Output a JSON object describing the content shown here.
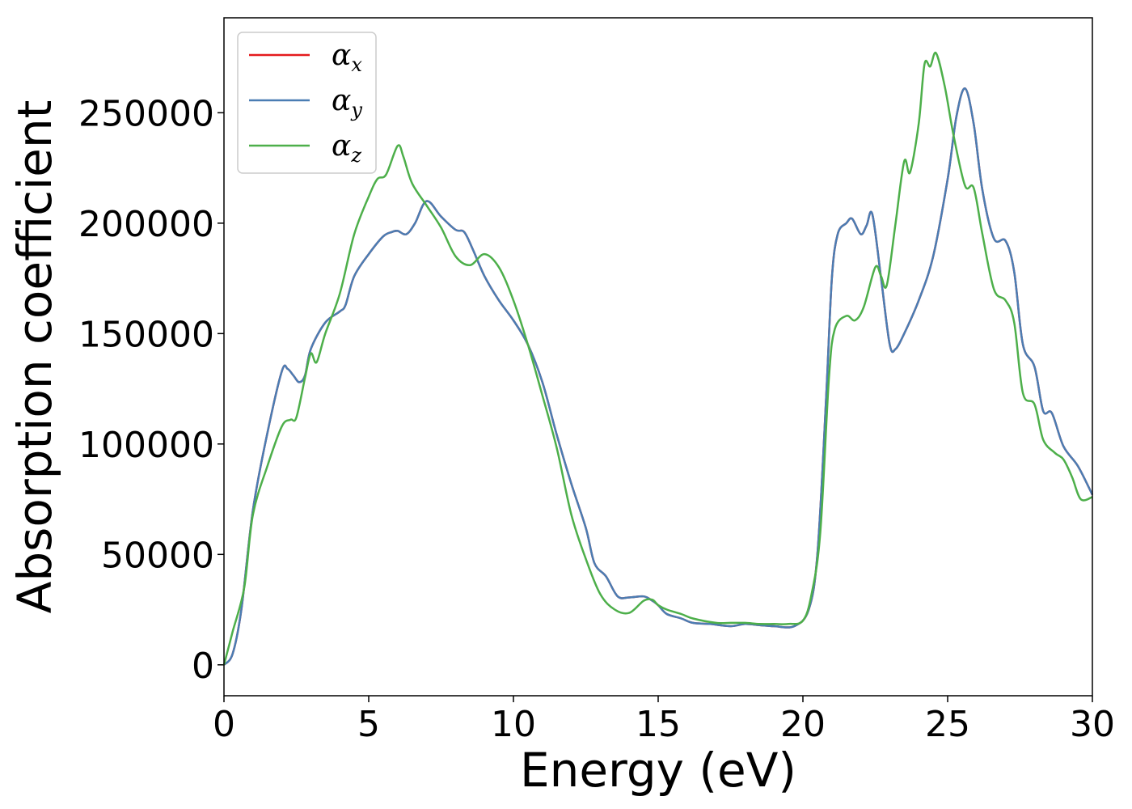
{
  "chart_data": {
    "type": "line",
    "title": "",
    "xlabel": "Energy (eV)",
    "ylabel": "Absorption coefficient",
    "xlim": [
      0,
      30
    ],
    "ylim": [
      -14000,
      293000
    ],
    "xticks": [
      "0",
      "5",
      "10",
      "15",
      "20",
      "25",
      "30"
    ],
    "yticks": [
      "0",
      "50000",
      "100000",
      "150000",
      "200000",
      "250000"
    ],
    "grid": false,
    "legend_placement": "upper-left",
    "series": [
      {
        "name": "α_x",
        "symbol": "α",
        "subscript": "x",
        "color": "#e41a1c",
        "points": [
          [
            0,
            0
          ],
          [
            0.3,
            5000
          ],
          [
            0.6,
            25000
          ],
          [
            1.0,
            70000
          ],
          [
            1.5,
            105000
          ],
          [
            2.0,
            133000
          ],
          [
            2.2,
            134000
          ],
          [
            2.4,
            131000
          ],
          [
            2.6,
            128000
          ],
          [
            2.8,
            131000
          ],
          [
            3.0,
            143000
          ],
          [
            3.5,
            155000
          ],
          [
            4.0,
            160000
          ],
          [
            4.2,
            163000
          ],
          [
            4.5,
            176000
          ],
          [
            5.0,
            186000
          ],
          [
            5.5,
            194000
          ],
          [
            5.8,
            196000
          ],
          [
            6.0,
            196500
          ],
          [
            6.3,
            195000
          ],
          [
            6.6,
            200000
          ],
          [
            7.0,
            210000
          ],
          [
            7.5,
            203000
          ],
          [
            8.0,
            197000
          ],
          [
            8.3,
            196000
          ],
          [
            8.6,
            188000
          ],
          [
            9.0,
            176000
          ],
          [
            9.5,
            165000
          ],
          [
            10.0,
            156000
          ],
          [
            10.5,
            145000
          ],
          [
            11.0,
            128000
          ],
          [
            11.5,
            104000
          ],
          [
            12.0,
            82000
          ],
          [
            12.5,
            62000
          ],
          [
            12.8,
            46000
          ],
          [
            13.2,
            40000
          ],
          [
            13.6,
            31000
          ],
          [
            14.0,
            30500
          ],
          [
            14.5,
            31000
          ],
          [
            14.8,
            29000
          ],
          [
            15.0,
            27000
          ],
          [
            15.3,
            23000
          ],
          [
            15.8,
            21000
          ],
          [
            16.2,
            19000
          ],
          [
            16.8,
            18500
          ],
          [
            17.5,
            17500
          ],
          [
            18.0,
            18500
          ],
          [
            18.5,
            18000
          ],
          [
            19.0,
            17500
          ],
          [
            19.7,
            17500
          ],
          [
            20.2,
            25000
          ],
          [
            20.5,
            50000
          ],
          [
            20.8,
            120000
          ],
          [
            21.0,
            175000
          ],
          [
            21.2,
            195000
          ],
          [
            21.5,
            200000
          ],
          [
            21.7,
            202000
          ],
          [
            22.0,
            195000
          ],
          [
            22.2,
            199000
          ],
          [
            22.4,
            204000
          ],
          [
            22.7,
            175000
          ],
          [
            23.0,
            145000
          ],
          [
            23.2,
            143000
          ],
          [
            23.5,
            150000
          ],
          [
            24.0,
            165000
          ],
          [
            24.5,
            185000
          ],
          [
            25.0,
            220000
          ],
          [
            25.3,
            248000
          ],
          [
            25.6,
            261000
          ],
          [
            25.9,
            245000
          ],
          [
            26.2,
            215000
          ],
          [
            26.6,
            193000
          ],
          [
            27.0,
            192000
          ],
          [
            27.3,
            178000
          ],
          [
            27.6,
            145000
          ],
          [
            28.0,
            135000
          ],
          [
            28.3,
            115000
          ],
          [
            28.6,
            114000
          ],
          [
            29.0,
            99000
          ],
          [
            29.5,
            90000
          ],
          [
            30.0,
            77000
          ]
        ]
      },
      {
        "name": "α_y",
        "symbol": "α",
        "subscript": "y",
        "color": "#4a7db3",
        "points": [
          [
            0,
            0
          ],
          [
            0.3,
            5000
          ],
          [
            0.6,
            25000
          ],
          [
            1.0,
            70000
          ],
          [
            1.5,
            105000
          ],
          [
            2.0,
            133000
          ],
          [
            2.2,
            134000
          ],
          [
            2.4,
            131000
          ],
          [
            2.6,
            128000
          ],
          [
            2.8,
            131000
          ],
          [
            3.0,
            143000
          ],
          [
            3.5,
            155000
          ],
          [
            4.0,
            160000
          ],
          [
            4.2,
            163000
          ],
          [
            4.5,
            176000
          ],
          [
            5.0,
            186000
          ],
          [
            5.5,
            194000
          ],
          [
            5.8,
            196000
          ],
          [
            6.0,
            196500
          ],
          [
            6.3,
            195000
          ],
          [
            6.6,
            200000
          ],
          [
            7.0,
            210000
          ],
          [
            7.5,
            203000
          ],
          [
            8.0,
            197000
          ],
          [
            8.3,
            196000
          ],
          [
            8.6,
            188000
          ],
          [
            9.0,
            176000
          ],
          [
            9.5,
            165000
          ],
          [
            10.0,
            156000
          ],
          [
            10.5,
            145000
          ],
          [
            11.0,
            128000
          ],
          [
            11.5,
            104000
          ],
          [
            12.0,
            82000
          ],
          [
            12.5,
            62000
          ],
          [
            12.8,
            46000
          ],
          [
            13.2,
            40000
          ],
          [
            13.6,
            31000
          ],
          [
            14.0,
            30500
          ],
          [
            14.5,
            31000
          ],
          [
            14.8,
            29000
          ],
          [
            15.0,
            27000
          ],
          [
            15.3,
            23000
          ],
          [
            15.8,
            21000
          ],
          [
            16.2,
            19000
          ],
          [
            16.8,
            18500
          ],
          [
            17.5,
            17500
          ],
          [
            18.0,
            18500
          ],
          [
            18.5,
            18000
          ],
          [
            19.0,
            17500
          ],
          [
            19.7,
            17500
          ],
          [
            20.2,
            25000
          ],
          [
            20.5,
            50000
          ],
          [
            20.8,
            120000
          ],
          [
            21.0,
            175000
          ],
          [
            21.2,
            195000
          ],
          [
            21.5,
            200000
          ],
          [
            21.7,
            202000
          ],
          [
            22.0,
            195000
          ],
          [
            22.2,
            199000
          ],
          [
            22.4,
            204000
          ],
          [
            22.7,
            175000
          ],
          [
            23.0,
            145000
          ],
          [
            23.2,
            143000
          ],
          [
            23.5,
            150000
          ],
          [
            24.0,
            165000
          ],
          [
            24.5,
            185000
          ],
          [
            25.0,
            220000
          ],
          [
            25.3,
            248000
          ],
          [
            25.6,
            261000
          ],
          [
            25.9,
            245000
          ],
          [
            26.2,
            215000
          ],
          [
            26.6,
            193000
          ],
          [
            27.0,
            192000
          ],
          [
            27.3,
            178000
          ],
          [
            27.6,
            145000
          ],
          [
            28.0,
            135000
          ],
          [
            28.3,
            115000
          ],
          [
            28.6,
            114000
          ],
          [
            29.0,
            99000
          ],
          [
            29.5,
            90000
          ],
          [
            30.0,
            77000
          ]
        ]
      },
      {
        "name": "α_z",
        "symbol": "α",
        "subscript": "z",
        "color": "#4daf4a",
        "points": [
          [
            0,
            0
          ],
          [
            0.3,
            15000
          ],
          [
            0.7,
            35000
          ],
          [
            1.0,
            68000
          ],
          [
            1.5,
            90000
          ],
          [
            2.0,
            108000
          ],
          [
            2.3,
            111000
          ],
          [
            2.5,
            112000
          ],
          [
            2.8,
            130000
          ],
          [
            3.0,
            141000
          ],
          [
            3.2,
            137000
          ],
          [
            3.5,
            150000
          ],
          [
            4.0,
            168000
          ],
          [
            4.5,
            195000
          ],
          [
            5.0,
            212000
          ],
          [
            5.3,
            220000
          ],
          [
            5.6,
            222000
          ],
          [
            6.0,
            235000
          ],
          [
            6.2,
            230000
          ],
          [
            6.5,
            218000
          ],
          [
            7.0,
            208000
          ],
          [
            7.5,
            198000
          ],
          [
            8.0,
            185000
          ],
          [
            8.5,
            181000
          ],
          [
            9.0,
            186000
          ],
          [
            9.5,
            180000
          ],
          [
            10.0,
            165000
          ],
          [
            10.5,
            145000
          ],
          [
            11.0,
            122000
          ],
          [
            11.5,
            98000
          ],
          [
            12.0,
            68000
          ],
          [
            12.5,
            48000
          ],
          [
            13.0,
            32000
          ],
          [
            13.5,
            25000
          ],
          [
            14.0,
            23500
          ],
          [
            14.5,
            29000
          ],
          [
            14.8,
            29500
          ],
          [
            15.0,
            27000
          ],
          [
            15.3,
            25000
          ],
          [
            15.8,
            23000
          ],
          [
            16.2,
            21000
          ],
          [
            17.0,
            19000
          ],
          [
            17.5,
            19000
          ],
          [
            18.0,
            19000
          ],
          [
            18.5,
            18500
          ],
          [
            19.0,
            18500
          ],
          [
            19.5,
            18500
          ],
          [
            20.0,
            20000
          ],
          [
            20.3,
            32000
          ],
          [
            20.6,
            60000
          ],
          [
            20.9,
            130000
          ],
          [
            21.1,
            152000
          ],
          [
            21.5,
            158000
          ],
          [
            21.8,
            156000
          ],
          [
            22.1,
            162000
          ],
          [
            22.5,
            180000
          ],
          [
            22.7,
            176000
          ],
          [
            22.9,
            172000
          ],
          [
            23.2,
            200000
          ],
          [
            23.5,
            228000
          ],
          [
            23.7,
            223000
          ],
          [
            24.0,
            245000
          ],
          [
            24.2,
            272000
          ],
          [
            24.4,
            271000
          ],
          [
            24.6,
            277000
          ],
          [
            24.9,
            262000
          ],
          [
            25.2,
            240000
          ],
          [
            25.6,
            217000
          ],
          [
            25.9,
            216000
          ],
          [
            26.2,
            195000
          ],
          [
            26.6,
            170000
          ],
          [
            27.0,
            165000
          ],
          [
            27.3,
            155000
          ],
          [
            27.6,
            123000
          ],
          [
            28.0,
            118000
          ],
          [
            28.3,
            102000
          ],
          [
            28.7,
            96000
          ],
          [
            29.0,
            93000
          ],
          [
            29.3,
            85000
          ],
          [
            29.6,
            75000
          ],
          [
            30.0,
            76000
          ]
        ]
      }
    ]
  }
}
